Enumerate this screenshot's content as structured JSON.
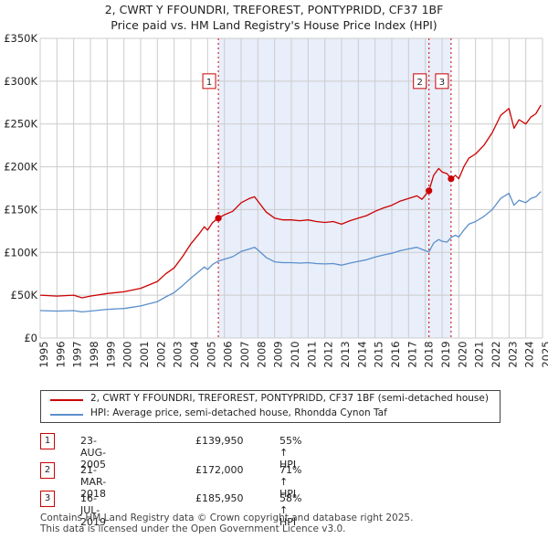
{
  "title": {
    "line1": "2, CWRT Y FFOUNDRI, TREFOREST, PONTYPRIDD, CF37 1BF",
    "line2": "Price paid vs. HM Land Registry's House Price Index (HPI)"
  },
  "colors": {
    "price_line": "#cc0000",
    "hpi_line": "#5b8fcc",
    "shade": "#e8eefa",
    "grid": "#cccccc",
    "marker_border": "#cc0000"
  },
  "chart_data": {
    "type": "line",
    "title": "Price paid vs. HM Land Registry's House Price Index (HPI)",
    "xlabel": "",
    "ylabel": "",
    "xlim": [
      1995.0,
      2025.0
    ],
    "ylim": [
      0,
      350000
    ],
    "y_ticks": [
      {
        "value": 0,
        "label": "£0"
      },
      {
        "value": 50000,
        "label": "£50K"
      },
      {
        "value": 100000,
        "label": "£100K"
      },
      {
        "value": 150000,
        "label": "£150K"
      },
      {
        "value": 200000,
        "label": "£200K"
      },
      {
        "value": 250000,
        "label": "£250K"
      },
      {
        "value": 300000,
        "label": "£300K"
      },
      {
        "value": 350000,
        "label": "£350K"
      }
    ],
    "x_ticks": [
      "1995",
      "1996",
      "1997",
      "1998",
      "1999",
      "2000",
      "2001",
      "2002",
      "2003",
      "2004",
      "2005",
      "2006",
      "2007",
      "2008",
      "2009",
      "2010",
      "2011",
      "2012",
      "2013",
      "2014",
      "2015",
      "2016",
      "2017",
      "2018",
      "2019",
      "2020",
      "2021",
      "2022",
      "2023",
      "2024",
      "2025"
    ],
    "grid": true,
    "shaded_ranges": [
      [
        2005.64,
        2019.54
      ]
    ],
    "series": [
      {
        "name": "2, CWRT Y FFOUNDRI, TREFOREST, PONTYPRIDD, CF37 1BF (semi-detached house)",
        "x": [
          1995.0,
          1996.0,
          1997.0,
          1997.5,
          1998.0,
          1999.0,
          2000.0,
          2000.5,
          2001.0,
          2001.5,
          2002.0,
          2002.5,
          2003.0,
          2003.5,
          2004.0,
          2004.5,
          2004.8,
          2005.0,
          2005.3,
          2005.64,
          2006.0,
          2006.5,
          2007.0,
          2007.5,
          2007.8,
          2008.0,
          2008.5,
          2009.0,
          2009.5,
          2010.0,
          2010.5,
          2011.0,
          2011.5,
          2012.0,
          2012.5,
          2013.0,
          2013.5,
          2014.0,
          2014.5,
          2015.0,
          2015.5,
          2016.0,
          2016.5,
          2017.0,
          2017.5,
          2017.8,
          2018.22,
          2018.5,
          2018.8,
          2019.0,
          2019.3,
          2019.54,
          2019.8,
          2020.0,
          2020.3,
          2020.6,
          2021.0,
          2021.5,
          2022.0,
          2022.5,
          2023.0,
          2023.3,
          2023.6,
          2024.0,
          2024.3,
          2024.6,
          2024.9
        ],
        "values": [
          50000,
          49000,
          50000,
          47000,
          49000,
          52000,
          54000,
          56000,
          58000,
          62000,
          66000,
          75000,
          82000,
          95000,
          110000,
          122000,
          130000,
          126000,
          135000,
          139950,
          144000,
          148000,
          158000,
          163000,
          165000,
          160000,
          147000,
          140000,
          138000,
          138000,
          137000,
          138000,
          136000,
          135000,
          136000,
          133000,
          137000,
          140000,
          143000,
          148000,
          152000,
          155000,
          160000,
          163000,
          166000,
          162000,
          172000,
          190000,
          198000,
          194000,
          192000,
          185950,
          190000,
          186000,
          200000,
          210000,
          215000,
          225000,
          240000,
          260000,
          268000,
          245000,
          255000,
          250000,
          258000,
          262000,
          272000
        ]
      },
      {
        "name": "HPI: Average price, semi-detached house, Rhondda Cynon Taf",
        "x": [
          1995.0,
          1996.0,
          1997.0,
          1997.5,
          1998.0,
          1999.0,
          2000.0,
          2000.5,
          2001.0,
          2001.5,
          2002.0,
          2002.5,
          2003.0,
          2003.5,
          2004.0,
          2004.5,
          2004.8,
          2005.0,
          2005.3,
          2005.64,
          2006.0,
          2006.5,
          2007.0,
          2007.5,
          2007.8,
          2008.0,
          2008.5,
          2009.0,
          2009.5,
          2010.0,
          2010.5,
          2011.0,
          2011.5,
          2012.0,
          2012.5,
          2013.0,
          2013.5,
          2014.0,
          2014.5,
          2015.0,
          2015.5,
          2016.0,
          2016.5,
          2017.0,
          2017.5,
          2017.8,
          2018.22,
          2018.5,
          2018.8,
          2019.0,
          2019.3,
          2019.54,
          2019.8,
          2020.0,
          2020.3,
          2020.6,
          2021.0,
          2021.5,
          2022.0,
          2022.5,
          2023.0,
          2023.3,
          2023.6,
          2024.0,
          2024.3,
          2024.6,
          2024.9
        ],
        "values": [
          32000,
          31500,
          32000,
          30500,
          31500,
          33500,
          34500,
          36000,
          37500,
          40000,
          42500,
          48000,
          53000,
          61000,
          70000,
          78000,
          83000,
          80000,
          86000,
          90000,
          92000,
          95000,
          101000,
          104000,
          106000,
          103000,
          94000,
          89000,
          88000,
          88000,
          87500,
          88000,
          87000,
          86500,
          87000,
          85000,
          87500,
          89500,
          91500,
          94500,
          97000,
          99000,
          102000,
          104000,
          106000,
          103500,
          100500,
          111000,
          115000,
          113000,
          112000,
          117500,
          120000,
          118000,
          126000,
          133000,
          136000,
          142000,
          150000,
          163000,
          169000,
          155000,
          161000,
          158000,
          163000,
          165000,
          171000
        ]
      }
    ],
    "sales": [
      {
        "marker": "1",
        "x": 2005.64,
        "price": 139950
      },
      {
        "marker": "2",
        "x": 2018.22,
        "price": 172000
      },
      {
        "marker": "3",
        "x": 2019.54,
        "price": 185950
      }
    ]
  },
  "legend": {
    "price_label": "2, CWRT Y FFOUNDRI, TREFOREST, PONTYPRIDD, CF37 1BF (semi-detached house)",
    "hpi_label": "HPI: Average price, semi-detached house, Rhondda Cynon Taf"
  },
  "transactions": [
    {
      "num": "1",
      "date": "23-AUG-2005",
      "price": "£139,950",
      "hpi": "55% ↑ HPI"
    },
    {
      "num": "2",
      "date": "21-MAR-2018",
      "price": "£172,000",
      "hpi": "71% ↑ HPI"
    },
    {
      "num": "3",
      "date": "16-JUL-2019",
      "price": "£185,950",
      "hpi": "58% ↑ HPI"
    }
  ],
  "footer": {
    "line1": "Contains HM Land Registry data © Crown copyright and database right 2025.",
    "line2": "This data is licensed under the Open Government Licence v3.0."
  }
}
